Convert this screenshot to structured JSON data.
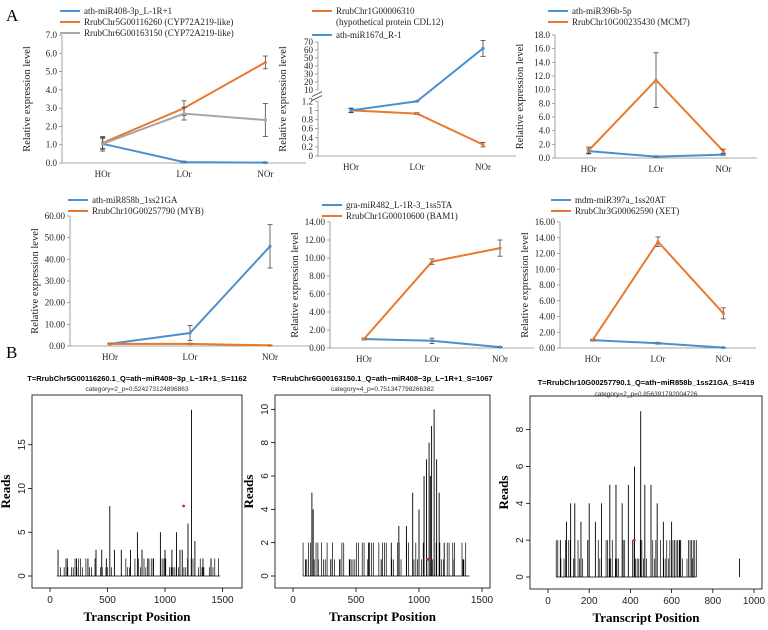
{
  "panel_labels": [
    "A",
    "B"
  ],
  "colors": {
    "blue": "#4a90d0",
    "orange": "#e8792e",
    "gray": "#a6a6a6",
    "axis": "#8c8c8c",
    "grid": "#e6e6e6",
    "reads": "#000000",
    "marker": "#e02020"
  },
  "chart_data": [
    {
      "type": "line",
      "panel": "A",
      "categories": [
        "HOr",
        "LOr",
        "NOr"
      ],
      "ylabel": "Relative expression level",
      "ylim": [
        0,
        7
      ],
      "yticks": [
        "0.0",
        "1.0",
        "2.0",
        "3.0",
        "4.0",
        "5.0",
        "6.0",
        "7.0"
      ],
      "series": [
        {
          "name": "ath-miR408-3p_L-1R+1",
          "color": "blue",
          "values": [
            1.05,
            0.05,
            0.02
          ],
          "errors": [
            0.4,
            0.05,
            0.02
          ]
        },
        {
          "name": "RrubChr5G00116260 (CYP72A219-like)",
          "color": "orange",
          "values": [
            1.1,
            3.0,
            5.5
          ],
          "errors": [
            0.3,
            0.4,
            0.35
          ]
        },
        {
          "name": "RrubChr6G00163150 (CYP72A219-like)",
          "color": "gray",
          "values": [
            1.05,
            2.7,
            2.35
          ],
          "errors": [
            0.3,
            0.35,
            0.9
          ]
        }
      ]
    },
    {
      "type": "line",
      "panel": "A",
      "categories": [
        "HOr",
        "LOr",
        "NOr"
      ],
      "ylabel": "Relative expression level",
      "broken_axis": true,
      "ylim_upper": [
        10,
        70
      ],
      "yticks_upper": [
        "10.0",
        "20.0",
        "30.0",
        "40.0",
        "50.0",
        "60.0",
        "70.0"
      ],
      "ylim_lower": [
        0,
        1.2
      ],
      "yticks_lower": [
        "0.0",
        "0.2",
        "0.4",
        "0.6",
        "0.8",
        "1.0",
        "1.2"
      ],
      "series": [
        {
          "name": "RrubChr1G00006310 (hypothetical protein CDL12)",
          "color": "orange",
          "values": [
            1.0,
            0.93,
            0.25
          ],
          "errors": [
            0.04,
            0.02,
            0.05
          ]
        },
        {
          "name": "ath-miR167d_R-1",
          "color": "blue",
          "values": [
            1.0,
            1.48,
            62
          ],
          "errors": [
            0.05,
            0.02,
            10
          ]
        }
      ]
    },
    {
      "type": "line",
      "panel": "A",
      "categories": [
        "HOr",
        "LOr",
        "NOr"
      ],
      "ylabel": "Relative expression level",
      "ylim": [
        0,
        18
      ],
      "yticks": [
        "0.0",
        "2.0",
        "4.0",
        "6.0",
        "8.0",
        "10.0",
        "12.0",
        "14.0",
        "16.0",
        "18.0"
      ],
      "series": [
        {
          "name": "ath-miR396b-5p",
          "color": "blue",
          "values": [
            1.0,
            0.2,
            0.5
          ],
          "errors": [
            0.3,
            0.1,
            0.1
          ]
        },
        {
          "name": "RrubChr10G00235430 (MCM7)",
          "color": "orange",
          "values": [
            1.1,
            11.4,
            1.0
          ],
          "errors": [
            0.5,
            4.0,
            0.3
          ]
        }
      ]
    },
    {
      "type": "line",
      "panel": "A",
      "categories": [
        "HOr",
        "LOr",
        "NOr"
      ],
      "ylabel": "Relative expression level",
      "ylim": [
        0,
        60
      ],
      "yticks": [
        "0.00",
        "10.00",
        "20.00",
        "30.00",
        "40.00",
        "50.00",
        "60.00"
      ],
      "series": [
        {
          "name": "ath-miR858b_1ss21GA",
          "color": "blue",
          "values": [
            1.0,
            6.0,
            46.0
          ],
          "errors": [
            0.3,
            3.5,
            10.0
          ]
        },
        {
          "name": "RrubChr10G00257790 (MYB)",
          "color": "orange",
          "values": [
            1.0,
            1.0,
            0.3
          ],
          "errors": [
            0.1,
            0.1,
            0.05
          ]
        }
      ]
    },
    {
      "type": "line",
      "panel": "A",
      "categories": [
        "HOr",
        "LOr",
        "NOr"
      ],
      "ylabel": "Relative expression level",
      "ylim": [
        0,
        14
      ],
      "yticks": [
        "0.00",
        "2.00",
        "4.00",
        "6.00",
        "8.00",
        "10.00",
        "12.00",
        "14.00"
      ],
      "series": [
        {
          "name": "gra-miR482_L-1R-3_1ss5TA",
          "color": "blue",
          "values": [
            1.0,
            0.8,
            0.1
          ],
          "errors": [
            0.1,
            0.3,
            0.05
          ]
        },
        {
          "name": "RrubChr1G00010600 (BAM1)",
          "color": "orange",
          "values": [
            1.0,
            9.6,
            11.1
          ],
          "errors": [
            0.1,
            0.3,
            0.9
          ]
        }
      ]
    },
    {
      "type": "line",
      "panel": "A",
      "categories": [
        "HOr",
        "LOr",
        "NOr"
      ],
      "ylabel": "Relative expression level",
      "ylim": [
        0,
        16
      ],
      "yticks": [
        "0.00",
        "2.00",
        "4.00",
        "6.00",
        "8.00",
        "10.00",
        "12.00",
        "14.00",
        "16.00"
      ],
      "series": [
        {
          "name": "mdm-miR397a_1ss20AT",
          "color": "blue",
          "values": [
            1.0,
            0.6,
            0.05
          ],
          "errors": [
            0.1,
            0.1,
            0.02
          ]
        },
        {
          "name": "RrubChr3G00062590 (XET)",
          "color": "orange",
          "values": [
            1.0,
            13.5,
            4.4
          ],
          "errors": [
            0.1,
            0.6,
            0.7
          ]
        }
      ]
    },
    {
      "type": "bar",
      "panel": "B",
      "title": "T=RrubChr5G00116260.1_Q=ath−miR408−3p_L−1R+1_S=1162",
      "subtitle": "category=2_p=0.524273124896863",
      "xlabel": "Transcript Position",
      "ylabel": "Reads",
      "xlim": [
        0,
        1600
      ],
      "ylim": [
        0,
        20
      ],
      "xticks": [
        0,
        500,
        1000,
        1500
      ],
      "yticks": [
        0,
        5,
        10,
        15
      ],
      "marker": {
        "x": 1162,
        "y": 8
      },
      "peaks": [
        [
          70,
          3
        ],
        [
          150,
          2
        ],
        [
          230,
          2
        ],
        [
          330,
          2
        ],
        [
          400,
          3
        ],
        [
          450,
          3
        ],
        [
          490,
          2
        ],
        [
          520,
          8
        ],
        [
          560,
          3
        ],
        [
          620,
          3
        ],
        [
          700,
          3
        ],
        [
          760,
          5
        ],
        [
          800,
          3
        ],
        [
          860,
          2
        ],
        [
          900,
          2
        ],
        [
          960,
          5
        ],
        [
          1000,
          3
        ],
        [
          1060,
          3
        ],
        [
          1100,
          5
        ],
        [
          1130,
          3
        ],
        [
          1150,
          3
        ],
        [
          1200,
          6
        ],
        [
          1230,
          19
        ],
        [
          1260,
          4
        ],
        [
          1330,
          2
        ],
        [
          1400,
          2
        ]
      ],
      "range": [
        60,
        1480
      ]
    },
    {
      "type": "bar",
      "panel": "B",
      "title": "T=RrubChr6G00163150.1_Q=ath−miR408−3p_L−1R+1_S=1067",
      "subtitle": "category=4_p=0.751347798266382",
      "xlabel": "Transcript Position",
      "ylabel": "Reads",
      "xlim": [
        0,
        1500
      ],
      "ylim": [
        0,
        10.5
      ],
      "xticks": [
        0,
        500,
        1000,
        1500
      ],
      "yticks": [
        0,
        2,
        4,
        6,
        8,
        10
      ],
      "marker": {
        "x": 1067,
        "y": 1
      },
      "peaks": [
        [
          100,
          1
        ],
        [
          150,
          5
        ],
        [
          160,
          4
        ],
        [
          200,
          1
        ],
        [
          300,
          1
        ],
        [
          370,
          1
        ],
        [
          450,
          1
        ],
        [
          600,
          2
        ],
        [
          700,
          1
        ],
        [
          780,
          2
        ],
        [
          840,
          3
        ],
        [
          900,
          3
        ],
        [
          950,
          5
        ],
        [
          1000,
          4
        ],
        [
          1040,
          6
        ],
        [
          1060,
          7
        ],
        [
          1080,
          8
        ],
        [
          1090,
          6
        ],
        [
          1100,
          9
        ],
        [
          1120,
          10
        ],
        [
          1140,
          7
        ],
        [
          1160,
          5
        ],
        [
          1200,
          2
        ],
        [
          1270,
          1
        ],
        [
          1350,
          1
        ]
      ],
      "range": [
        80,
        1400
      ]
    },
    {
      "type": "bar",
      "panel": "B",
      "title": "T=RrubChr10G00257790.1_Q=ath−miR858b_1ss21GA_S=419",
      "subtitle": "category=2_p=0.856391792004726",
      "xlabel": "Transcript Position",
      "ylabel": "Reads",
      "xlim": [
        0,
        1000
      ],
      "ylim": [
        0,
        9.5
      ],
      "xticks": [
        0,
        200,
        400,
        600,
        800,
        1000
      ],
      "yticks": [
        0,
        2,
        4,
        6,
        8
      ],
      "marker": {
        "x": 419,
        "y": 2
      },
      "peaks": [
        [
          60,
          2
        ],
        [
          90,
          3
        ],
        [
          110,
          4
        ],
        [
          130,
          4
        ],
        [
          160,
          3
        ],
        [
          200,
          4
        ],
        [
          230,
          3
        ],
        [
          260,
          4
        ],
        [
          300,
          5
        ],
        [
          330,
          5
        ],
        [
          360,
          4
        ],
        [
          390,
          5
        ],
        [
          420,
          6
        ],
        [
          450,
          9
        ],
        [
          470,
          5
        ],
        [
          500,
          5
        ],
        [
          530,
          4
        ],
        [
          560,
          3
        ],
        [
          600,
          3
        ],
        [
          640,
          2
        ],
        [
          700,
          1
        ],
        [
          930,
          1
        ]
      ],
      "range": [
        40,
        720
      ]
    }
  ]
}
